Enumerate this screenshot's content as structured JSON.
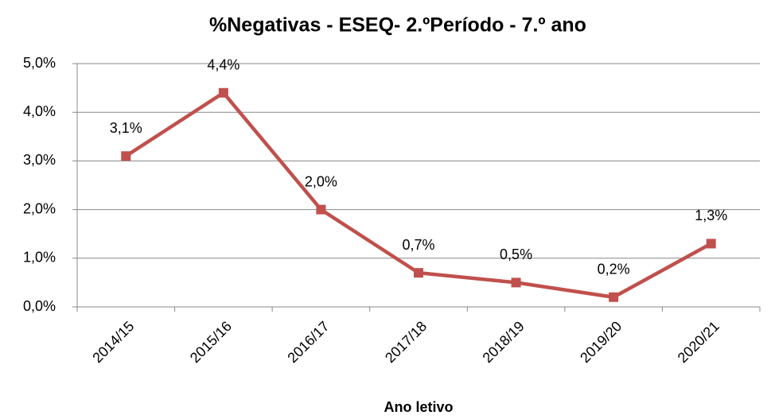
{
  "chart_data": {
    "type": "line",
    "title": "%Negativas - ESEQ- 2.ºPeríodo - 7.º ano",
    "x_label": "Ano letivo",
    "categories": [
      "2014/15",
      "2015/16",
      "2016/17",
      "2017/18",
      "2018/19",
      "2019/20",
      "2020/21"
    ],
    "series": [
      {
        "name": "%Negativas",
        "color": "#c0504d",
        "values": [
          3.1,
          4.4,
          2.0,
          0.7,
          0.5,
          0.2,
          1.3
        ],
        "value_labels": [
          "3,1%",
          "4,4%",
          "2,0%",
          "0,7%",
          "0,5%",
          "0,2%",
          "1,3%"
        ]
      }
    ],
    "ylim": [
      0,
      5
    ],
    "yticks": [
      {
        "value": 0,
        "label": "0,0%"
      },
      {
        "value": 1,
        "label": "1,0%"
      },
      {
        "value": 2,
        "label": "2,0%"
      },
      {
        "value": 3,
        "label": "3,0%"
      },
      {
        "value": 4,
        "label": "4,0%"
      },
      {
        "value": 5,
        "label": "5,0%"
      }
    ],
    "grid": true
  }
}
